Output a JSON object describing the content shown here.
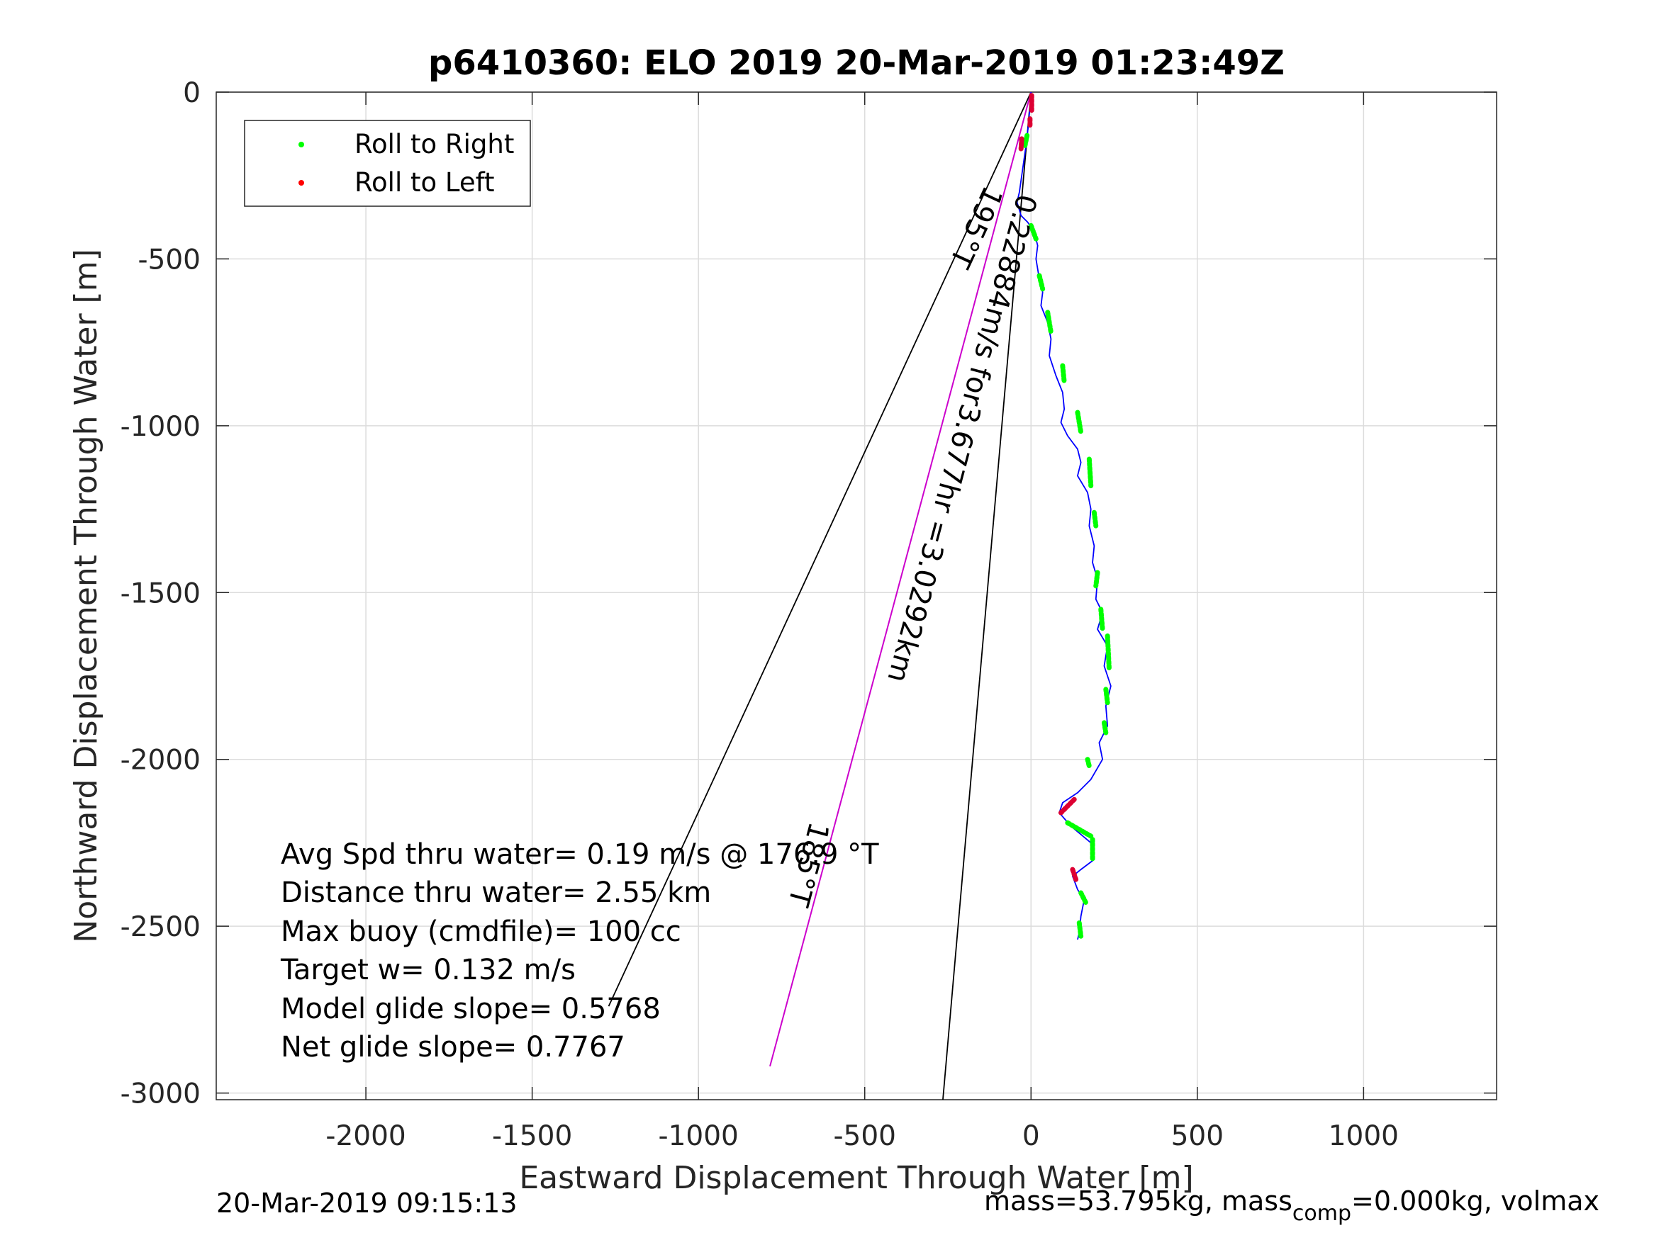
{
  "chart_data": {
    "type": "line",
    "title": "p6410360: ELO 2019 20-Mar-2019 01:23:49Z",
    "xlabel": "Eastward Displacement Through Water [m]",
    "ylabel": "Northward Displacement Through Water [m]",
    "xlim": [
      -2450,
      1400
    ],
    "ylim": [
      -3020,
      0
    ],
    "xticks": [
      -2000,
      -1500,
      -1000,
      -500,
      0,
      500,
      1000
    ],
    "yticks": [
      0,
      -500,
      -1000,
      -1500,
      -2000,
      -2500,
      -3000
    ],
    "grid": true,
    "legend": {
      "position": "top-left",
      "entries": [
        {
          "label": "Roll to Right",
          "color": "#00ff00"
        },
        {
          "label": "Roll to Left",
          "color": "#ff0000"
        }
      ]
    },
    "track": {
      "color": "#0000ff",
      "x": [
        0,
        -3,
        -8,
        -15,
        -25,
        -35,
        -42,
        -30,
        -10,
        10,
        20,
        15,
        25,
        35,
        30,
        50,
        60,
        55,
        75,
        95,
        100,
        90,
        110,
        140,
        150,
        140,
        170,
        180,
        175,
        190,
        185,
        200,
        195,
        215,
        200,
        230,
        220,
        240,
        225,
        230,
        205,
        215,
        180,
        140,
        95,
        85,
        120,
        180,
        190,
        150,
        125,
        140,
        160,
        150,
        145,
        140
      ],
      "y": [
        0,
        -40,
        -100,
        -160,
        -230,
        -300,
        -330,
        -370,
        -390,
        -420,
        -460,
        -500,
        -560,
        -600,
        -640,
        -690,
        -740,
        -790,
        -850,
        -900,
        -950,
        -990,
        -1030,
        -1070,
        -1110,
        -1150,
        -1200,
        -1250,
        -1300,
        -1360,
        -1410,
        -1460,
        -1520,
        -1560,
        -1610,
        -1660,
        -1720,
        -1780,
        -1840,
        -1900,
        -1950,
        -2000,
        -2060,
        -2100,
        -2130,
        -2160,
        -2200,
        -2250,
        -2300,
        -2330,
        -2350,
        -2390,
        -2420,
        -2470,
        -2520,
        -2540
      ]
    },
    "roll_right_segments": [
      [
        [
          -12,
          -130
        ],
        [
          -18,
          -160
        ]
      ],
      [
        [
          0,
          -400
        ],
        [
          15,
          -440
        ]
      ],
      [
        [
          25,
          -550
        ],
        [
          35,
          -590
        ]
      ],
      [
        [
          50,
          -660
        ],
        [
          60,
          -720
        ]
      ],
      [
        [
          95,
          -820
        ],
        [
          100,
          -870
        ]
      ],
      [
        [
          140,
          -960
        ],
        [
          150,
          -1020
        ]
      ],
      [
        [
          175,
          -1100
        ],
        [
          180,
          -1180
        ]
      ],
      [
        [
          190,
          -1260
        ],
        [
          195,
          -1300
        ]
      ],
      [
        [
          200,
          -1440
        ],
        [
          195,
          -1480
        ]
      ],
      [
        [
          210,
          -1550
        ],
        [
          215,
          -1610
        ]
      ],
      [
        [
          230,
          -1630
        ],
        [
          235,
          -1730
        ]
      ],
      [
        [
          225,
          -1790
        ],
        [
          230,
          -1830
        ]
      ],
      [
        [
          220,
          -1890
        ],
        [
          225,
          -1920
        ]
      ],
      [
        [
          170,
          -2000
        ],
        [
          175,
          -2020
        ]
      ],
      [
        [
          110,
          -2190
        ],
        [
          180,
          -2230
        ]
      ],
      [
        [
          185,
          -2240
        ],
        [
          185,
          -2300
        ]
      ],
      [
        [
          150,
          -2400
        ],
        [
          165,
          -2430
        ]
      ],
      [
        [
          145,
          -2490
        ],
        [
          150,
          -2530
        ]
      ]
    ],
    "roll_left_segments": [
      [
        [
          2,
          -10
        ],
        [
          2,
          -60
        ]
      ],
      [
        [
          -3,
          -80
        ],
        [
          -3,
          -100
        ]
      ],
      [
        [
          -28,
          -140
        ],
        [
          -30,
          -170
        ]
      ],
      [
        [
          90,
          -2160
        ],
        [
          130,
          -2120
        ]
      ],
      [
        [
          125,
          -2330
        ],
        [
          135,
          -2360
        ]
      ]
    ],
    "lines": [
      {
        "name": "course-line-195",
        "color": "#000000",
        "from": [
          0,
          0
        ],
        "to": [
          -1270,
          -2740
        ]
      },
      {
        "name": "course-line-185",
        "color": "#000000",
        "from": [
          0,
          0
        ],
        "to": [
          -265,
          -3020
        ]
      },
      {
        "name": "current-line",
        "color": "#cc00cc",
        "from": [
          0,
          0
        ],
        "to": [
          -785,
          -2920
        ]
      }
    ],
    "labels": {
      "course_195": "195°T",
      "course_185": "185°T",
      "current": "0.22884m/s for3.677hr =3.0292km"
    },
    "annotations": [
      "Avg Spd thru water=  0.19 m/s @ 176.9 °T",
      "Distance thru water=  2.55 km",
      "Max buoy (cmdfile)= 100 cc",
      "Target w= 0.132 m/s",
      "Model glide slope= 0.5768",
      "Net glide slope= 0.7767"
    ]
  },
  "footer": {
    "timestamp": "20-Mar-2019 09:15:13",
    "mass_prefix": "mass=53.795kg, mass",
    "mass_subscript": "comp",
    "mass_suffix": "=0.000kg, volmax"
  }
}
